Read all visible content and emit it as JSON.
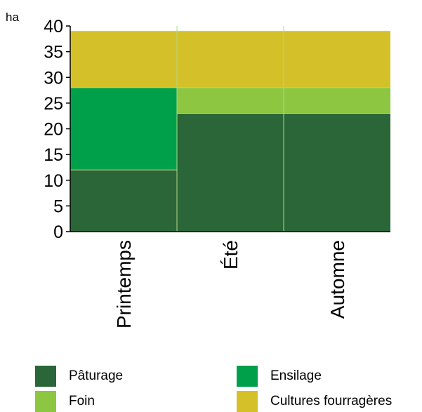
{
  "chart_data": {
    "type": "bar",
    "stacked": true,
    "yunit": "ha",
    "ylim": [
      0,
      40
    ],
    "yticks": [
      0,
      5,
      10,
      15,
      20,
      25,
      30,
      35,
      40
    ],
    "categories": [
      "Printemps",
      "Été",
      "Automne"
    ],
    "series": [
      {
        "name": "Pâturage",
        "color": "#2a6637",
        "values": [
          12,
          23,
          23
        ]
      },
      {
        "name": "Ensilage",
        "color": "#00a04a",
        "values": [
          16,
          0,
          0
        ]
      },
      {
        "name": "Foin",
        "color": "#8dc640",
        "values": [
          0,
          5,
          5
        ]
      },
      {
        "name": "Cultures fourragères",
        "color": "#d4c12a",
        "values": [
          11,
          11,
          11
        ]
      }
    ],
    "legend_position": "bottom"
  }
}
